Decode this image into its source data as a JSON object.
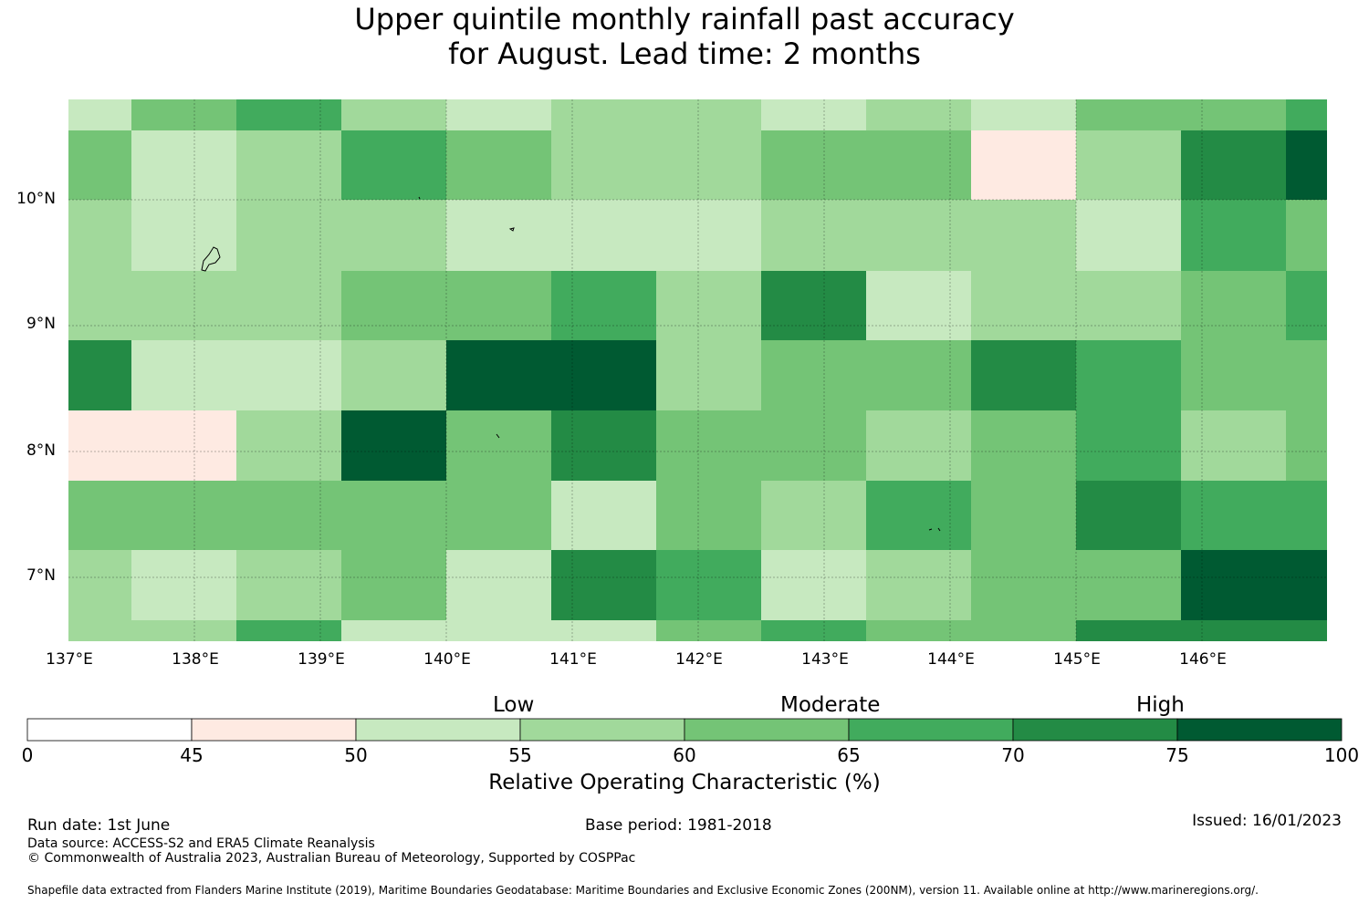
{
  "title": {
    "line1": "Upper quintile monthly rainfall past accuracy",
    "line2": "for August. Lead time: 2 months"
  },
  "map": {
    "lat_labels": [
      "10°N",
      "9°N",
      "8°N",
      "7°N"
    ],
    "lon_labels": [
      "137°E",
      "138°E",
      "139°E",
      "140°E",
      "141°E",
      "142°E",
      "143°E",
      "144°E",
      "145°E",
      "146°E"
    ],
    "grid_rows": [
      [
        2,
        4,
        5,
        3,
        2,
        3,
        3,
        2,
        3,
        2,
        4,
        4,
        5
      ],
      [
        4,
        2,
        3,
        5,
        4,
        3,
        3,
        4,
        4,
        1,
        3,
        6,
        7
      ],
      [
        3,
        2,
        3,
        3,
        2,
        2,
        2,
        3,
        3,
        3,
        2,
        5,
        4
      ],
      [
        3,
        3,
        3,
        4,
        4,
        5,
        3,
        6,
        2,
        3,
        3,
        4,
        5
      ],
      [
        6,
        2,
        2,
        3,
        7,
        7,
        3,
        4,
        4,
        6,
        5,
        4,
        4
      ],
      [
        1,
        1,
        3,
        7,
        4,
        6,
        4,
        4,
        3,
        4,
        5,
        3,
        4
      ],
      [
        4,
        4,
        4,
        4,
        4,
        2,
        4,
        3,
        5,
        4,
        6,
        5,
        5
      ],
      [
        3,
        2,
        3,
        4,
        2,
        6,
        5,
        2,
        3,
        4,
        4,
        7,
        7
      ],
      [
        3,
        3,
        5,
        2,
        2,
        2,
        4,
        5,
        4,
        4,
        6,
        6,
        6
      ]
    ]
  },
  "colorbar": {
    "category_labels": {
      "low": "Low",
      "moderate": "Moderate",
      "high": "High"
    },
    "tick_labels": [
      "0",
      "45",
      "50",
      "55",
      "60",
      "65",
      "70",
      "75",
      "100"
    ],
    "colors": [
      "#ffffff",
      "#feeae2",
      "#c7e9c0",
      "#a1d99b",
      "#74c476",
      "#41ab5d",
      "#238b45",
      "#005a32"
    ],
    "title": "Relative Operating Characteristic (%)"
  },
  "footer": {
    "run_date": "Run date: 1st June",
    "base_period": "Base period: 1981-2018",
    "issued": "Issued: 16/01/2023",
    "data_source": "Data source: ACCESS-S2 and ERA5 Climate Reanalysis",
    "copyright": "© Commonwealth of Australia 2023, Australian Bureau of Meteorology, Supported by COSPPac",
    "shapefile": "Shapefile data extracted from Flanders Marine Institute (2019), Maritime Boundaries Geodatabase: Maritime Boundaries and Exclusive Economic Zones (200NM), version 11. Available online at http://www.marineregions.org/."
  }
}
